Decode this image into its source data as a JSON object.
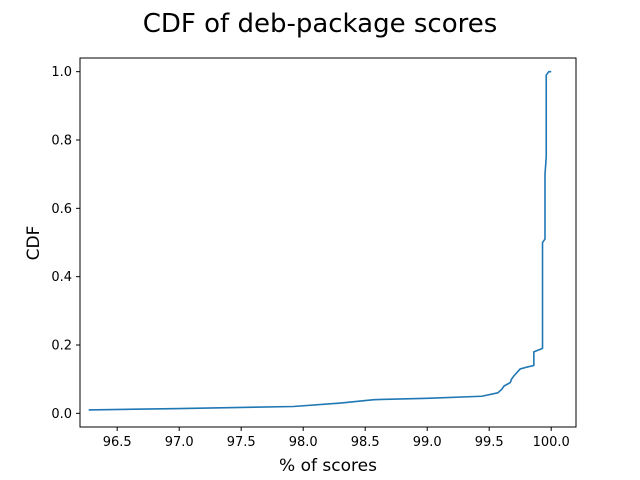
{
  "chart_data": {
    "type": "line",
    "title": "CDF of deb-package scores",
    "xlabel": "% of scores",
    "ylabel": "CDF",
    "xlim": [
      96.2,
      100.2
    ],
    "ylim": [
      -0.04,
      1.04
    ],
    "xticks": [
      96.5,
      97.0,
      97.5,
      98.0,
      98.5,
      99.0,
      99.5,
      100.0
    ],
    "xtick_labels": [
      "96.5",
      "97.0",
      "97.5",
      "98.0",
      "98.5",
      "99.0",
      "99.5",
      "100.0"
    ],
    "yticks": [
      0.0,
      0.2,
      0.4,
      0.6,
      0.8,
      1.0
    ],
    "ytick_labels": [
      "0.0",
      "0.2",
      "0.4",
      "0.6",
      "0.8",
      "1.0"
    ],
    "grid": false,
    "series": [
      {
        "color": "#1f77b4",
        "x": [
          96.27,
          97.0,
          97.92,
          98.3,
          98.57,
          99.0,
          99.44,
          99.57,
          99.6,
          99.62,
          99.67,
          99.68,
          99.7,
          99.75,
          99.8,
          99.86,
          99.86,
          99.93,
          99.93,
          99.95,
          99.95,
          99.96,
          99.96,
          99.98,
          100.0
        ],
        "y": [
          0.01,
          0.014,
          0.02,
          0.03,
          0.04,
          0.044,
          0.05,
          0.06,
          0.07,
          0.08,
          0.09,
          0.1,
          0.11,
          0.13,
          0.135,
          0.14,
          0.18,
          0.19,
          0.5,
          0.51,
          0.7,
          0.75,
          0.99,
          1.0,
          1.0
        ]
      }
    ]
  }
}
